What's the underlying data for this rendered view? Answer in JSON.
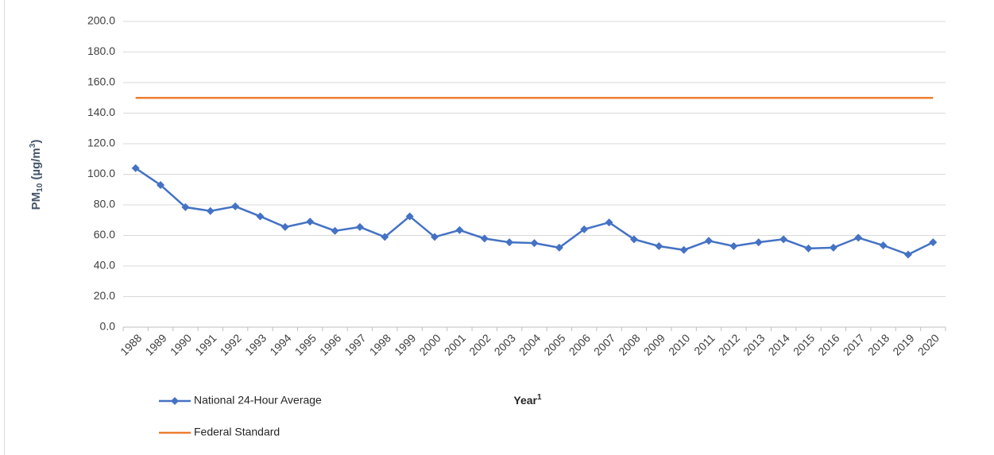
{
  "chart_data": {
    "type": "line",
    "ylabel_parts": [
      "PM",
      "10",
      " (µg/m",
      "3",
      ")"
    ],
    "xlabel_parts": [
      "Year",
      "1"
    ],
    "categories": [
      "1988",
      "1989",
      "1990",
      "1991",
      "1992",
      "1993",
      "1994",
      "1995",
      "1996",
      "1997",
      "1998",
      "1999",
      "2000",
      "2001",
      "2002",
      "2003",
      "2004",
      "2005",
      "2006",
      "2007",
      "2008",
      "2009",
      "2010",
      "2011",
      "2012",
      "2013",
      "2014",
      "2015",
      "2016",
      "2017",
      "2018",
      "2019",
      "2020"
    ],
    "series": [
      {
        "name": "National 24-Hour Average",
        "color": "#4472c4",
        "marker": "diamond",
        "values": [
          104,
          93,
          78.5,
          76,
          79,
          72.5,
          65.5,
          69,
          63,
          65.5,
          59,
          72.5,
          59,
          63.5,
          58,
          55.5,
          55,
          52,
          64,
          68.5,
          57.5,
          53,
          50.5,
          56.5,
          53,
          55.5,
          57.5,
          51.5,
          52,
          58.5,
          53.5,
          47.5,
          55.5
        ]
      },
      {
        "name": "Federal Standard",
        "color": "#ed7d31",
        "values": [
          150,
          150,
          150,
          150,
          150,
          150,
          150,
          150,
          150,
          150,
          150,
          150,
          150,
          150,
          150,
          150,
          150,
          150,
          150,
          150,
          150,
          150,
          150,
          150,
          150,
          150,
          150,
          150,
          150,
          150,
          150,
          150,
          150
        ]
      }
    ],
    "ylim": [
      0,
      200
    ],
    "yticks": [
      {
        "value": 0,
        "label": "0.0"
      },
      {
        "value": 20,
        "label": "20.0"
      },
      {
        "value": 40,
        "label": "40.0"
      },
      {
        "value": 60,
        "label": "60.0"
      },
      {
        "value": 80,
        "label": "80.0"
      },
      {
        "value": 100,
        "label": "100.0"
      },
      {
        "value": 120,
        "label": "120.0"
      },
      {
        "value": 140,
        "label": "140.0"
      },
      {
        "value": 160,
        "label": "160.0"
      },
      {
        "value": 180,
        "label": "180.0"
      },
      {
        "value": 200,
        "label": "200.0"
      }
    ],
    "grid": true,
    "legend": "bottom-left"
  }
}
